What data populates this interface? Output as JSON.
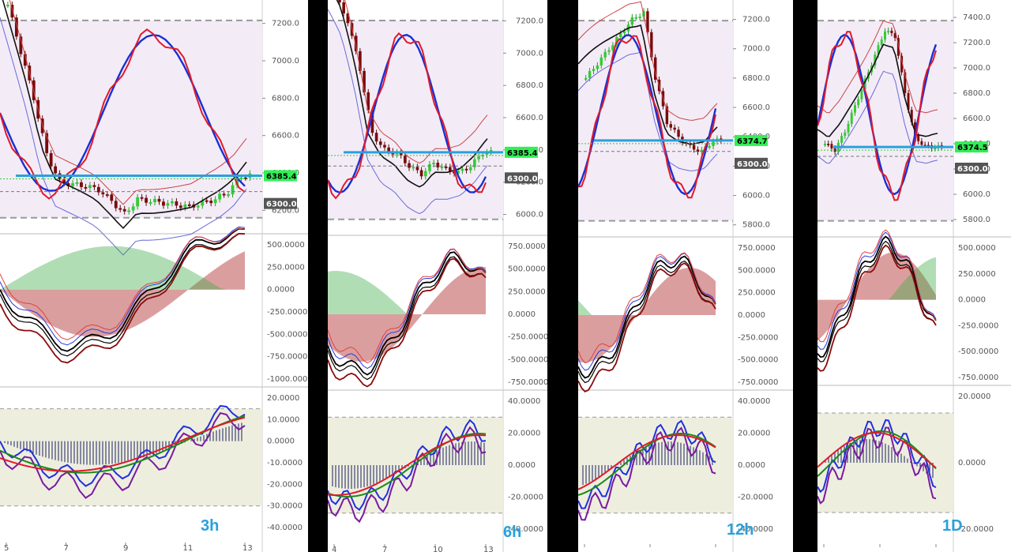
{
  "panels": [
    {
      "id": "3h",
      "timeframe_label": "3h",
      "current_price_label": "6385.4",
      "level_label": "6300.0",
      "price_ticks": [
        "7200.0",
        "7000.0",
        "6800.0",
        "6600.0",
        "6400.0",
        "6200.0"
      ],
      "macd_ticks": [
        "500.0000",
        "250.0000",
        "0.0000",
        "-250.0000",
        "-500.0000",
        "-750.0000",
        "-1000.0000"
      ],
      "osc_ticks": [
        "20.0000",
        "10.0000",
        "0.0000",
        "-10.0000",
        "-20.0000",
        "-30.0000",
        "-40.0000"
      ],
      "x_ticks": [
        "5",
        "7",
        "9",
        "11",
        "13"
      ]
    },
    {
      "id": "6h",
      "timeframe_label": "6h",
      "current_price_label": "6385.4",
      "level_label": "6300.0",
      "price_ticks": [
        "7200.0",
        "7000.0",
        "6800.0",
        "6600.0",
        "6400.0",
        "6200.0",
        "6000.0"
      ],
      "macd_ticks": [
        "750.0000",
        "500.0000",
        "250.0000",
        "0.0000",
        "-250.0000",
        "-500.0000",
        "-750.0000"
      ],
      "osc_ticks": [
        "40.0000",
        "20.0000",
        "0.0000",
        "-20.0000",
        "-40.0000"
      ],
      "x_ticks": [
        "4",
        "7",
        "10",
        "13"
      ]
    },
    {
      "id": "12h",
      "timeframe_label": "12h",
      "current_price_label": "6374.7",
      "level_label": "6300.0",
      "price_ticks": [
        "7200.0",
        "7000.0",
        "6800.0",
        "6600.0",
        "6400.0",
        "6200.0",
        "6000.0",
        "5800.0"
      ],
      "macd_ticks": [
        "750.0000",
        "500.0000",
        "250.0000",
        "0.0000",
        "-250.0000",
        "-500.0000",
        "-750.0000"
      ],
      "osc_ticks": [
        "40.0000",
        "20.0000",
        "0.0000",
        "-20.0000",
        "-40.0000"
      ],
      "x_ticks": [
        "",
        "",
        ""
      ]
    },
    {
      "id": "1D",
      "timeframe_label": "1D",
      "current_price_label": "6374.5",
      "level_label": "6300.0",
      "price_ticks": [
        "7400.0",
        "7200.0",
        "7000.0",
        "6800.0",
        "6600.0",
        "6400.0",
        "6200.0",
        "6000.0",
        "5800.0"
      ],
      "macd_ticks": [
        "500.0000",
        "250.0000",
        "0.0000",
        "-250.0000",
        "-500.0000",
        "-750.0000"
      ],
      "osc_ticks": [
        "20.0000",
        "0.0000",
        "-20.0000"
      ],
      "x_ticks": [
        "",
        "",
        ""
      ]
    }
  ],
  "chart_data": [
    {
      "type": "line",
      "panel": "3h",
      "title": "",
      "series": [
        {
          "values": [
            7300,
            7050,
            6800,
            6500,
            6350,
            6340,
            6330,
            6310,
            6250,
            6180,
            6260,
            6250,
            6240,
            6230,
            6220,
            6240,
            6260,
            6300,
            6385
          ]
        }
      ],
      "ylim": [
        6100,
        7300
      ],
      "current_price": 6385.4,
      "level": 6300.0
    },
    {
      "type": "line",
      "panel": "6h",
      "title": "",
      "series": [
        {
          "values": [
            7350,
            7200,
            6900,
            6500,
            6400,
            6380,
            6300,
            6250,
            6320,
            6280,
            6260,
            6300,
            6385
          ]
        }
      ],
      "ylim": [
        5900,
        7300
      ],
      "current_price": 6385.4,
      "level": 6300.0
    },
    {
      "type": "line",
      "panel": "12h",
      "title": "",
      "series": [
        {
          "values": [
            6800,
            6900,
            7000,
            7100,
            7200,
            7250,
            6800,
            6500,
            6400,
            6330,
            6300,
            6374
          ]
        }
      ],
      "ylim": [
        5750,
        7300
      ],
      "current_price": 6374.7,
      "level": 6300.0
    },
    {
      "type": "line",
      "panel": "1D",
      "title": "",
      "series": [
        {
          "values": [
            6400,
            6350,
            6500,
            6700,
            6900,
            7100,
            7300,
            7250,
            6800,
            6450,
            6380,
            6374
          ]
        }
      ],
      "ylim": [
        5700,
        7500
      ],
      "current_price": 6374.5,
      "level": 6300.0
    }
  ],
  "colors": {
    "up": "#33cc33",
    "down": "#7a0a0a",
    "line_blue": "#1a2fd6",
    "line_red": "#e01a2a",
    "price_line": "#2aa0dc",
    "current_box": "#33ee55",
    "level_box": "#555555"
  }
}
